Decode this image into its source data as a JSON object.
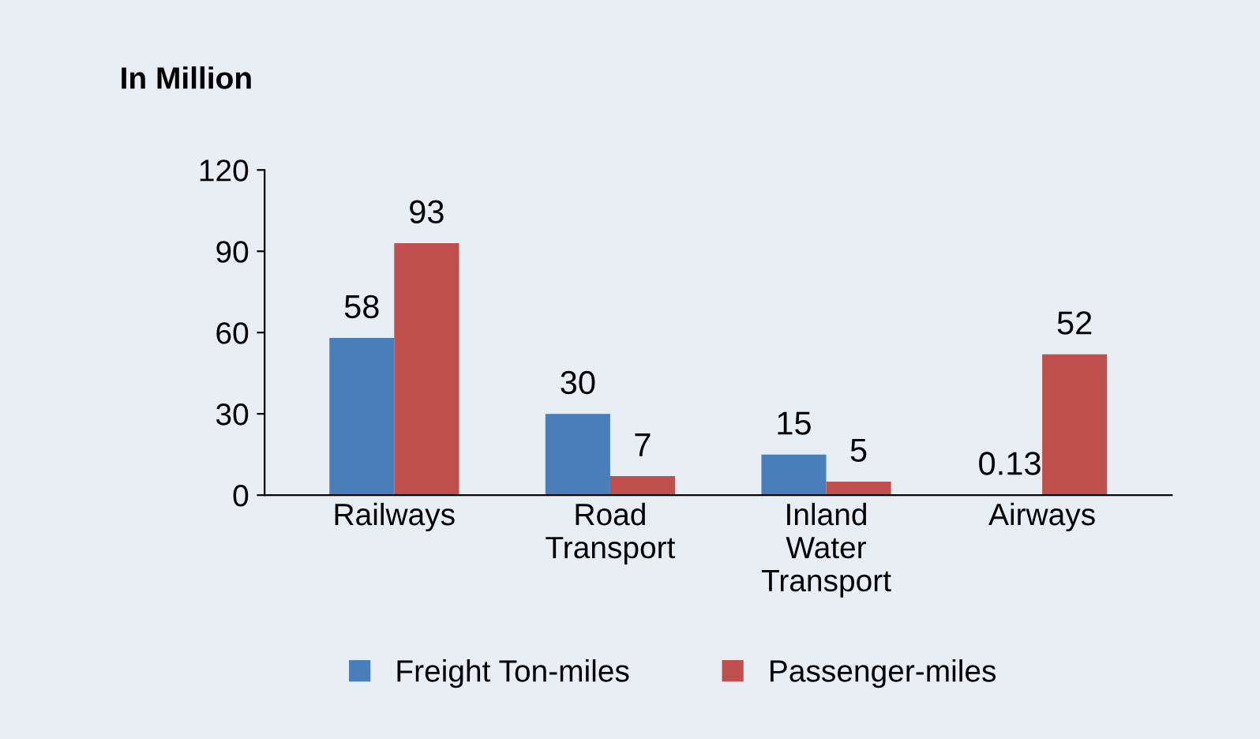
{
  "chart_data": {
    "type": "bar",
    "title": "In Million",
    "categories": [
      "Railways",
      "Road\nTransport",
      "Inland\nWater\nTransport",
      "Airways"
    ],
    "series": [
      {
        "name": "Freight Ton-miles",
        "color": "#4a7ebb",
        "values": [
          58,
          30,
          15,
          0.13
        ]
      },
      {
        "name": "Passenger-miles",
        "color": "#c0504d",
        "values": [
          93,
          7,
          5,
          52
        ]
      }
    ],
    "ylim": [
      0,
      120
    ],
    "yticks": [
      0,
      30,
      60,
      90,
      120
    ],
    "data_labels": true,
    "legend": "bottom",
    "grid": false
  }
}
